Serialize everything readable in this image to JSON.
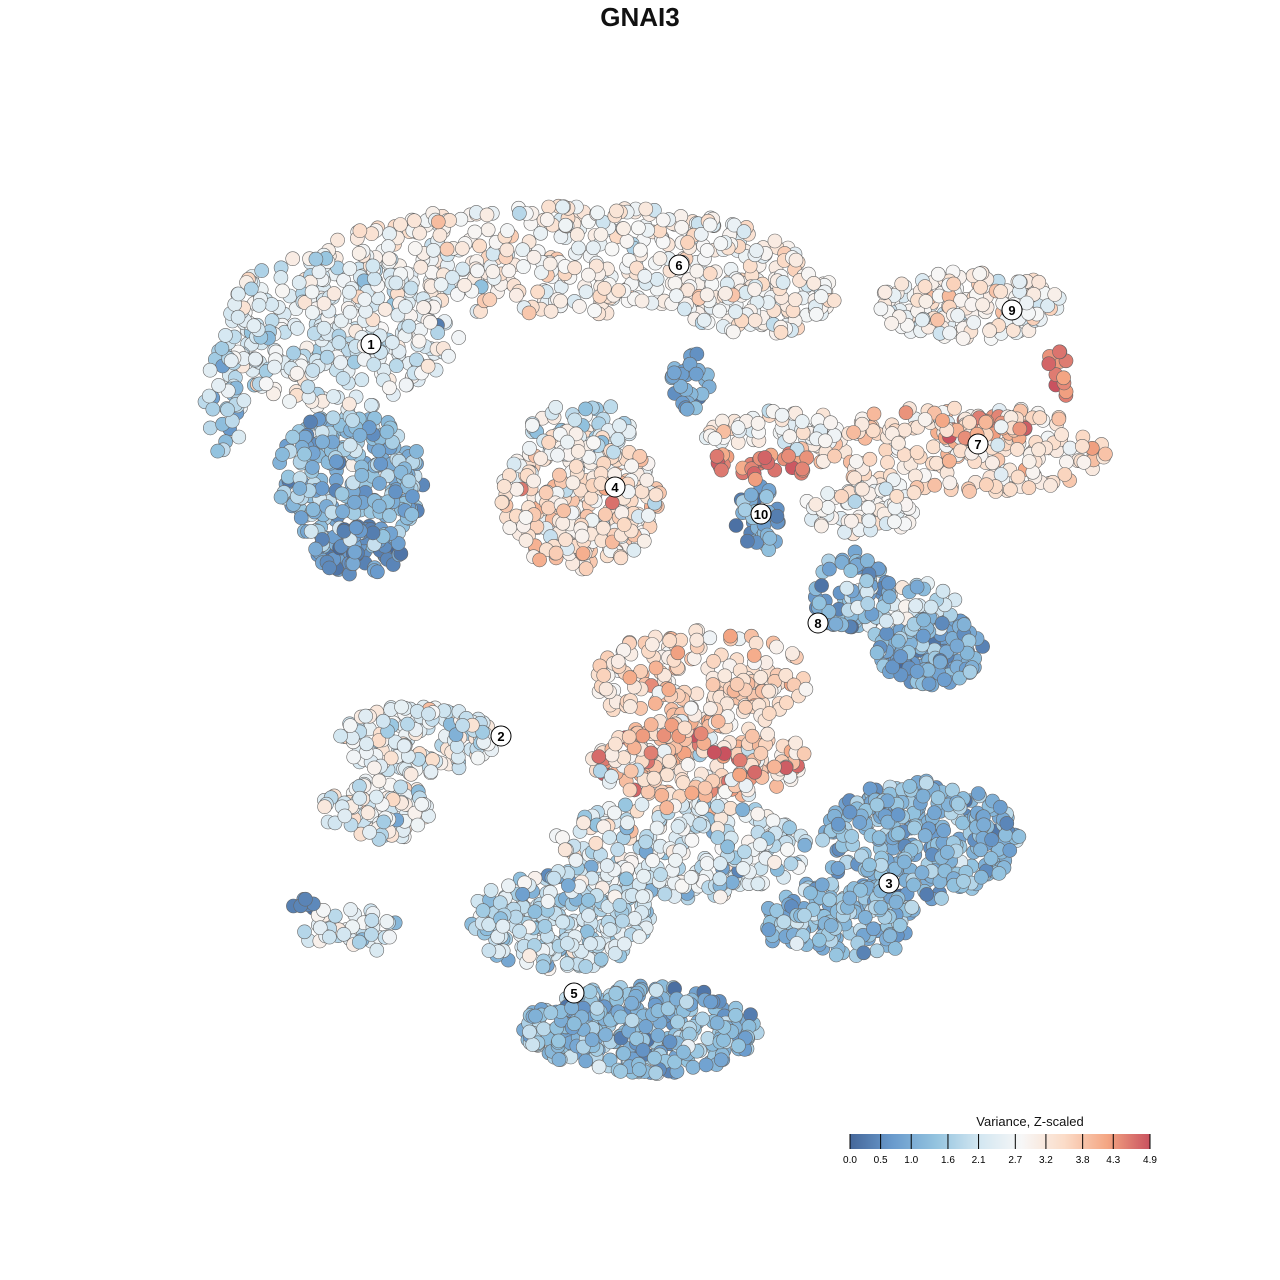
{
  "chart_data": {
    "type": "scatter",
    "title": "GNAI3",
    "xlabel": "",
    "ylabel": "",
    "xlim": [
      -64,
      64
    ],
    "ylim": [
      -64,
      64
    ],
    "grid": false,
    "color_scale": {
      "title": "Variance, Z-scaled",
      "min": 0.0,
      "max": 4.9,
      "ticks": [
        0.0,
        0.5,
        1.0,
        1.6,
        2.1,
        2.7,
        3.2,
        3.8,
        4.3,
        4.9
      ],
      "tick_labels": [
        "0.0",
        "0.5",
        "1.0",
        "1.6",
        "2.1",
        "2.7",
        "3.2",
        "3.8",
        "4.3",
        "4.9"
      ],
      "colors": [
        "#45679a",
        "#6a9bcd",
        "#93c3df",
        "#d2e6f1",
        "#f7f7f7",
        "#fbdcc8",
        "#f4a683",
        "#c9525f"
      ],
      "legend_position": "bottom-right"
    },
    "cluster_labels": [
      {
        "label": "1",
        "x": -26.9,
        "y": 29.6
      },
      {
        "label": "2",
        "x": -13.9,
        "y": -9.6
      },
      {
        "label": "3",
        "x": 24.9,
        "y": -24.3
      },
      {
        "label": "4",
        "x": -2.5,
        "y": 15.3
      },
      {
        "label": "5",
        "x": -6.6,
        "y": -35.3
      },
      {
        "label": "6",
        "x": 3.9,
        "y": 37.5
      },
      {
        "label": "7",
        "x": 33.8,
        "y": 19.6
      },
      {
        "label": "8",
        "x": 17.8,
        "y": 1.7
      },
      {
        "label": "9",
        "x": 37.2,
        "y": 33.0
      },
      {
        "label": "10",
        "x": 12.1,
        "y": 12.6
      }
    ],
    "point_groups": [
      {
        "cx": -30,
        "cy": 31,
        "sx": 12,
        "sy": 8,
        "n": 350,
        "mean": 2.4,
        "sd": 0.5
      },
      {
        "cx": -8,
        "cy": 38,
        "sx": 24,
        "sy": 5.5,
        "n": 400,
        "mean": 2.9,
        "sd": 0.4
      },
      {
        "cx": 12,
        "cy": 34,
        "sx": 8,
        "sy": 3.5,
        "n": 120,
        "mean": 2.9,
        "sd": 0.4
      },
      {
        "cx": -29,
        "cy": 16,
        "sx": 7.5,
        "sy": 7,
        "n": 250,
        "mean": 1.3,
        "sd": 0.5
      },
      {
        "cx": -28,
        "cy": 9,
        "sx": 4.5,
        "sy": 2.5,
        "n": 80,
        "mean": 0.6,
        "sd": 0.3
      },
      {
        "cx": -41.5,
        "cy": 24,
        "sx": 2,
        "sy": 6,
        "n": 40,
        "mean": 1.8,
        "sd": 0.5
      },
      {
        "cx": 33,
        "cy": 33.5,
        "sx": 9.5,
        "sy": 3.5,
        "n": 150,
        "mean": 2.9,
        "sd": 0.4
      },
      {
        "cx": 41.8,
        "cy": 26.5,
        "sx": 1.2,
        "sy": 3,
        "n": 12,
        "mean": 4.6,
        "sd": 0.2
      },
      {
        "cx": 32,
        "cy": 19,
        "sx": 15,
        "sy": 4.5,
        "n": 220,
        "mean": 3.3,
        "sd": 0.4
      },
      {
        "cx": 34,
        "cy": 21,
        "sx": 5,
        "sy": 1.5,
        "n": 40,
        "mean": 4.3,
        "sd": 0.3
      },
      {
        "cx": 12,
        "cy": 17.5,
        "sx": 5.5,
        "sy": 1.5,
        "n": 30,
        "mean": 4.5,
        "sd": 0.2
      },
      {
        "cx": 14,
        "cy": 21,
        "sx": 8,
        "sy": 2,
        "n": 60,
        "mean": 2.9,
        "sd": 0.4
      },
      {
        "cx": -6,
        "cy": 14,
        "sx": 8,
        "sy": 7,
        "n": 280,
        "mean": 3.2,
        "sd": 0.5
      },
      {
        "cx": -6,
        "cy": 21,
        "sx": 5,
        "sy": 3,
        "n": 60,
        "mean": 2.2,
        "sd": 0.5
      },
      {
        "cx": 5,
        "cy": 26,
        "sx": 2,
        "sy": 3,
        "n": 30,
        "mean": 0.9,
        "sd": 0.3
      },
      {
        "cx": 12,
        "cy": 12,
        "sx": 2.5,
        "sy": 3.5,
        "n": 40,
        "mean": 1.0,
        "sd": 0.4
      },
      {
        "cx": 22,
        "cy": 13,
        "sx": 6,
        "sy": 2.5,
        "n": 70,
        "mean": 2.8,
        "sd": 0.4
      },
      {
        "cx": 21,
        "cy": 5,
        "sx": 4,
        "sy": 4,
        "n": 70,
        "mean": 1.0,
        "sd": 0.4
      },
      {
        "cx": 29,
        "cy": -1,
        "sx": 5.5,
        "sy": 3.5,
        "n": 150,
        "mean": 0.9,
        "sd": 0.4
      },
      {
        "cx": 26,
        "cy": 3,
        "sx": 6,
        "sy": 3,
        "n": 60,
        "mean": 2.0,
        "sd": 0.5
      },
      {
        "cx": 6,
        "cy": -4,
        "sx": 11,
        "sy": 5,
        "n": 200,
        "mean": 3.4,
        "sd": 0.4
      },
      {
        "cx": 6,
        "cy": -12,
        "sx": 11,
        "sy": 4,
        "n": 200,
        "mean": 3.6,
        "sd": 0.6
      },
      {
        "cx": -22,
        "cy": -10,
        "sx": 8,
        "sy": 3.5,
        "n": 150,
        "mean": 2.4,
        "sd": 0.5
      },
      {
        "cx": -26,
        "cy": -17,
        "sx": 6,
        "sy": 3,
        "n": 100,
        "mean": 2.6,
        "sd": 0.5
      },
      {
        "cx": 4,
        "cy": -21,
        "sx": 13,
        "sy": 5,
        "n": 250,
        "mean": 2.3,
        "sd": 0.6
      },
      {
        "cx": 28,
        "cy": -20,
        "sx": 10,
        "sy": 6,
        "n": 300,
        "mean": 1.2,
        "sd": 0.4
      },
      {
        "cx": 20,
        "cy": -28,
        "sx": 8,
        "sy": 4,
        "n": 150,
        "mean": 1.3,
        "sd": 0.4
      },
      {
        "cx": -8,
        "cy": -28,
        "sx": 9,
        "sy": 5,
        "n": 250,
        "mean": 1.9,
        "sd": 0.5
      },
      {
        "cx": 0,
        "cy": -39,
        "sx": 12,
        "sy": 4.5,
        "n": 350,
        "mean": 1.3,
        "sd": 0.4
      },
      {
        "cx": -29,
        "cy": -29,
        "sx": 5,
        "sy": 2.5,
        "n": 40,
        "mean": 2.3,
        "sd": 0.4
      },
      {
        "cx": -33.5,
        "cy": -26.5,
        "sx": 1.2,
        "sy": 0.8,
        "n": 8,
        "mean": 0.4,
        "sd": 0.2
      }
    ]
  }
}
